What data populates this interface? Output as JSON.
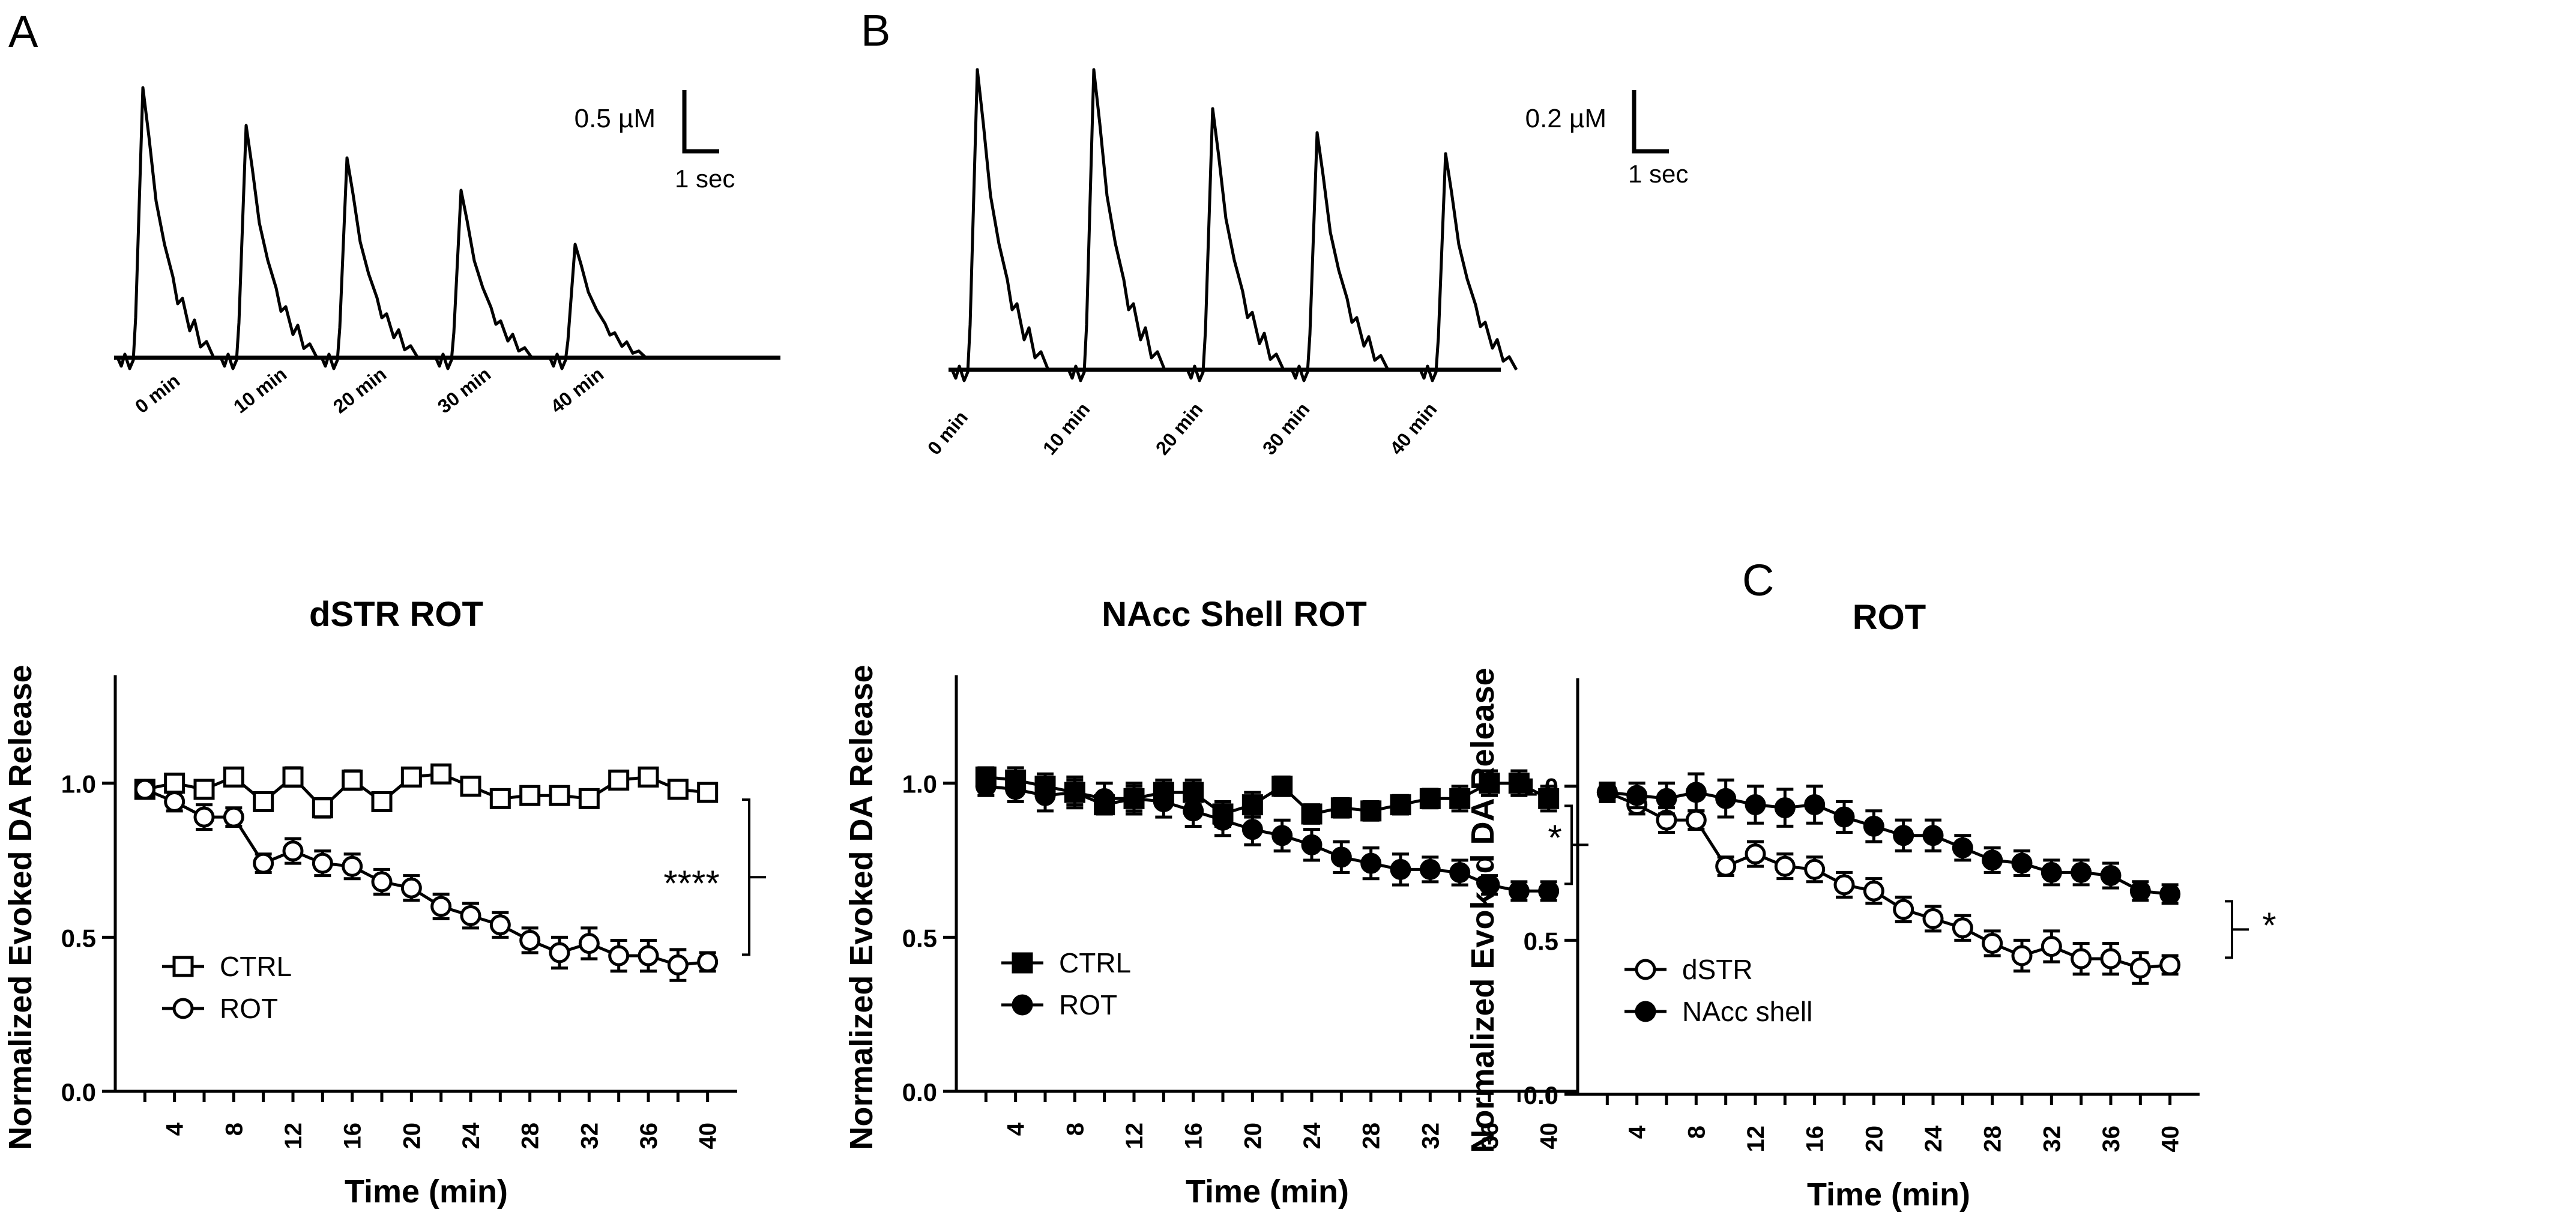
{
  "panels": {
    "A": {
      "letter": "A",
      "scale": {
        "conc": "0.5 µM",
        "time": "1 sec"
      },
      "time_labels": [
        "0 min",
        "10 min",
        "20 min",
        "30 min",
        "40 min"
      ]
    },
    "B": {
      "letter": "B",
      "scale": {
        "conc": "0.2 µM",
        "time": "1 sec"
      },
      "time_labels": [
        "0 min",
        "10 min",
        "20 min",
        "30 min",
        "40 min"
      ]
    },
    "C": {
      "letter": "C"
    }
  },
  "traces": {
    "A": {
      "peaks": [
        1.0,
        0.86,
        0.74,
        0.62,
        0.42
      ]
    },
    "B": {
      "peaks": [
        1.0,
        1.0,
        0.87,
        0.79,
        0.72
      ]
    }
  },
  "chart_data": [
    {
      "type": "line",
      "title": "dSTR ROT",
      "xlabel": "Time (min)",
      "ylabel": "Normalized Evoked DA Release",
      "xlim": [
        0,
        42
      ],
      "ylim": [
        0,
        1.35
      ],
      "xticks": [
        "4",
        "8",
        "12",
        "16",
        "20",
        "24",
        "28",
        "32",
        "36",
        "40"
      ],
      "yticks": [
        "0.0",
        "0.5",
        "1.0"
      ],
      "legend": "bottom-left",
      "significance": "****",
      "x": [
        2,
        4,
        6,
        8,
        10,
        12,
        14,
        16,
        18,
        20,
        22,
        24,
        26,
        28,
        30,
        32,
        34,
        36,
        38,
        40
      ],
      "series": [
        {
          "name": "CTRL",
          "marker": "open-square",
          "values": [
            0.98,
            1.0,
            0.98,
            1.02,
            0.94,
            1.02,
            0.92,
            1.01,
            0.94,
            1.02,
            1.03,
            0.99,
            0.95,
            0.96,
            0.96,
            0.95,
            1.01,
            1.02,
            0.98,
            0.97
          ],
          "err": [
            0.02,
            0.02,
            0.02,
            0.02,
            0.02,
            0.03,
            0.03,
            0.03,
            0.02,
            0.02,
            0.02,
            0.02,
            0.02,
            0.02,
            0.02,
            0.02,
            0.02,
            0.02,
            0.02,
            0.02
          ]
        },
        {
          "name": "ROT",
          "marker": "open-circle",
          "values": [
            0.98,
            0.94,
            0.89,
            0.89,
            0.74,
            0.78,
            0.74,
            0.73,
            0.68,
            0.66,
            0.6,
            0.57,
            0.54,
            0.49,
            0.45,
            0.48,
            0.44,
            0.44,
            0.41,
            0.42
          ],
          "err": [
            0.02,
            0.03,
            0.04,
            0.03,
            0.03,
            0.04,
            0.04,
            0.04,
            0.04,
            0.04,
            0.04,
            0.04,
            0.04,
            0.04,
            0.05,
            0.05,
            0.05,
            0.05,
            0.05,
            0.03
          ]
        }
      ]
    },
    {
      "type": "line",
      "title": "NAcc Shell ROT",
      "xlabel": "Time (min)",
      "ylabel": "Normalized Evoked DA Release",
      "xlim": [
        0,
        42
      ],
      "ylim": [
        0,
        1.35
      ],
      "xticks": [
        "4",
        "8",
        "12",
        "16",
        "20",
        "24",
        "28",
        "32",
        "36",
        "40"
      ],
      "yticks": [
        "0.0",
        "0.5",
        "1.0"
      ],
      "legend": "bottom-left",
      "significance": "*",
      "x": [
        2,
        4,
        6,
        8,
        10,
        12,
        14,
        16,
        18,
        20,
        22,
        24,
        26,
        28,
        30,
        32,
        34,
        36,
        38,
        40
      ],
      "series": [
        {
          "name": "CTRL",
          "marker": "filled-square",
          "values": [
            1.02,
            1.01,
            0.99,
            0.97,
            0.93,
            0.95,
            0.97,
            0.97,
            0.9,
            0.93,
            0.99,
            0.9,
            0.92,
            0.91,
            0.93,
            0.95,
            0.95,
            1.0,
            1.0,
            0.95
          ],
          "err": [
            0.03,
            0.04,
            0.04,
            0.04,
            0.03,
            0.04,
            0.04,
            0.04,
            0.04,
            0.04,
            0.03,
            0.03,
            0.03,
            0.03,
            0.03,
            0.03,
            0.04,
            0.04,
            0.04,
            0.04
          ]
        },
        {
          "name": "ROT",
          "marker": "filled-circle",
          "values": [
            0.99,
            0.98,
            0.96,
            0.97,
            0.95,
            0.95,
            0.94,
            0.91,
            0.88,
            0.85,
            0.83,
            0.8,
            0.76,
            0.74,
            0.72,
            0.72,
            0.71,
            0.67,
            0.65,
            0.65
          ],
          "err": [
            0.03,
            0.04,
            0.05,
            0.05,
            0.05,
            0.05,
            0.05,
            0.05,
            0.05,
            0.05,
            0.05,
            0.05,
            0.05,
            0.05,
            0.05,
            0.04,
            0.04,
            0.03,
            0.03,
            0.03
          ]
        }
      ]
    },
    {
      "type": "line",
      "title": "ROT",
      "xlabel": "Time (min)",
      "ylabel": "Normalized Evoked DA Release",
      "xlim": [
        0,
        42
      ],
      "ylim": [
        0,
        1.35
      ],
      "xticks": [
        "4",
        "8",
        "12",
        "16",
        "20",
        "24",
        "28",
        "32",
        "36",
        "40"
      ],
      "yticks": [
        "0.0",
        "0.5",
        "1.0"
      ],
      "legend": "bottom-left",
      "significance": "*",
      "x": [
        2,
        4,
        6,
        8,
        10,
        12,
        14,
        16,
        18,
        20,
        22,
        24,
        26,
        28,
        30,
        32,
        34,
        36,
        38,
        40
      ],
      "series": [
        {
          "name": "dSTR",
          "marker": "open-circle",
          "values": [
            0.98,
            0.94,
            0.89,
            0.89,
            0.74,
            0.78,
            0.74,
            0.73,
            0.68,
            0.66,
            0.6,
            0.57,
            0.54,
            0.49,
            0.45,
            0.48,
            0.44,
            0.44,
            0.41,
            0.42
          ],
          "err": [
            0.02,
            0.03,
            0.04,
            0.03,
            0.03,
            0.04,
            0.04,
            0.04,
            0.04,
            0.04,
            0.04,
            0.04,
            0.04,
            0.04,
            0.05,
            0.05,
            0.05,
            0.05,
            0.05,
            0.03
          ]
        },
        {
          "name": "NAcc shell",
          "marker": "filled-circle",
          "values": [
            0.98,
            0.97,
            0.96,
            0.98,
            0.96,
            0.94,
            0.93,
            0.94,
            0.9,
            0.87,
            0.84,
            0.84,
            0.8,
            0.76,
            0.75,
            0.72,
            0.72,
            0.71,
            0.66,
            0.65
          ],
          "err": [
            0.03,
            0.04,
            0.05,
            0.06,
            0.06,
            0.06,
            0.06,
            0.06,
            0.05,
            0.05,
            0.05,
            0.05,
            0.04,
            0.04,
            0.04,
            0.04,
            0.04,
            0.04,
            0.03,
            0.03
          ]
        }
      ]
    }
  ]
}
